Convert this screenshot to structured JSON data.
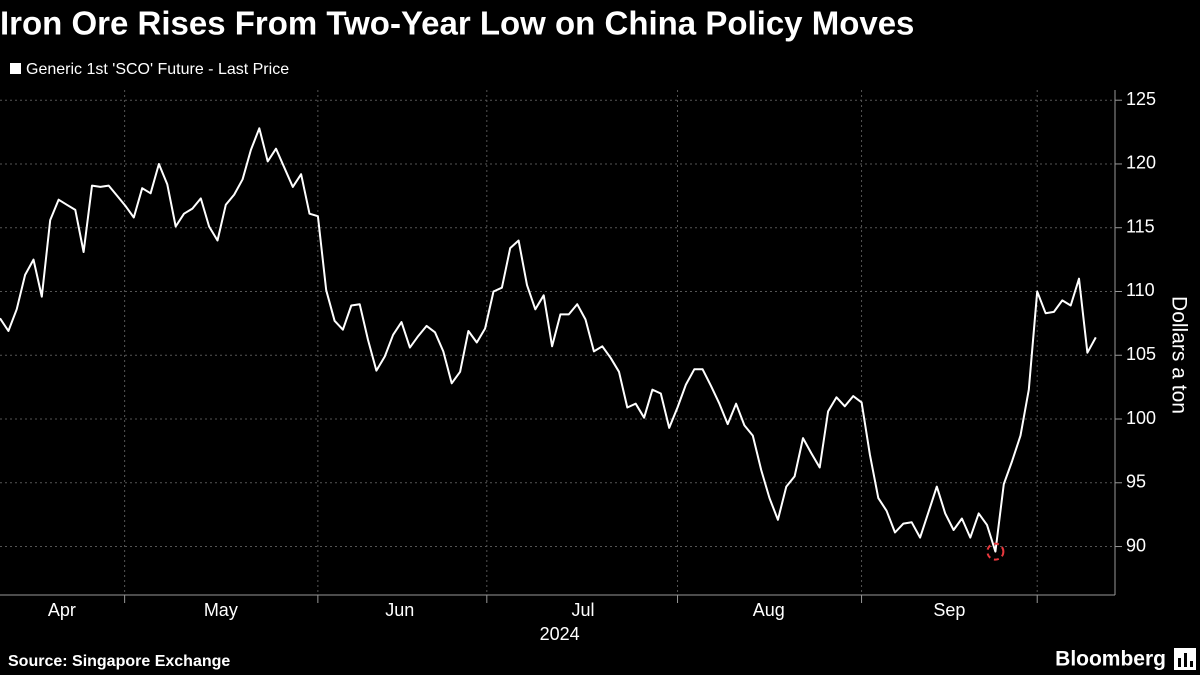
{
  "chart_data": {
    "type": "line",
    "title": "Iron Ore Rises From Two-Year Low on China Policy Moves",
    "source": "Source: Singapore Exchange",
    "brand": "Bloomberg",
    "y_label": "Dollars a ton",
    "series": [
      {
        "name": "Generic 1st 'SCO' Future - Last Price",
        "color": "#ffffff",
        "values": [
          107.9,
          106.9,
          108.6,
          111.3,
          112.5,
          109.6,
          115.6,
          117.2,
          116.8,
          116.4,
          113.1,
          118.3,
          118.2,
          118.3,
          117.5,
          116.7,
          115.8,
          118.1,
          117.7,
          120.0,
          118.4,
          115.1,
          116.1,
          116.5,
          117.3,
          115.1,
          114.0,
          116.8,
          117.6,
          118.8,
          121.1,
          122.8,
          120.2,
          121.2,
          119.7,
          118.2,
          119.2,
          116.1,
          115.9,
          110.1,
          107.7,
          107.0,
          108.9,
          109.0,
          106.2,
          103.8,
          104.9,
          106.6,
          107.6,
          105.6,
          106.5,
          107.3,
          106.8,
          105.3,
          102.8,
          103.7,
          106.9,
          106.0,
          107.1,
          110.0,
          110.3,
          113.4,
          114.0,
          110.5,
          108.6,
          109.7,
          105.7,
          108.2,
          108.2,
          109.0,
          107.8,
          105.3,
          105.7,
          104.8,
          103.7,
          100.9,
          101.2,
          100.1,
          102.3,
          102.0,
          99.3,
          100.9,
          102.7,
          103.9,
          103.9,
          102.6,
          101.2,
          99.6,
          101.2,
          99.5,
          98.7,
          96.0,
          93.8,
          92.1,
          94.7,
          95.5,
          98.5,
          97.3,
          96.2,
          100.6,
          101.7,
          101.0,
          101.8,
          101.3,
          97.2,
          93.8,
          92.8,
          91.1,
          91.8,
          91.9,
          90.7,
          92.7,
          94.7,
          92.6,
          91.3,
          92.2,
          90.7,
          92.6,
          91.7,
          89.6,
          94.9,
          96.7,
          98.7,
          102.3,
          110.0,
          108.3,
          108.4,
          109.3,
          108.9,
          111.0,
          105.2,
          106.4
        ]
      }
    ],
    "xlim": [
      0,
      133.3
    ],
    "xgrid": [
      14.9,
      38.0,
      58.2,
      81.0,
      103.0,
      124.0
    ],
    "xticks": [
      {
        "value": 7.4,
        "label": "Apr"
      },
      {
        "value": 26.4,
        "label": "May"
      },
      {
        "value": 47.8,
        "label": "Jun"
      },
      {
        "value": 69.7,
        "label": "Jul"
      },
      {
        "value": 91.9,
        "label": "Aug"
      },
      {
        "value": 113.5,
        "label": "Sep"
      }
    ],
    "x_sublabel": {
      "value": 66.9,
      "label": "2024"
    },
    "ylim": [
      86.2,
      125.8
    ],
    "yticks": [
      90,
      95,
      100,
      105,
      110,
      115,
      120,
      125
    ],
    "grid": true,
    "highlight_color": "#e8383d"
  }
}
